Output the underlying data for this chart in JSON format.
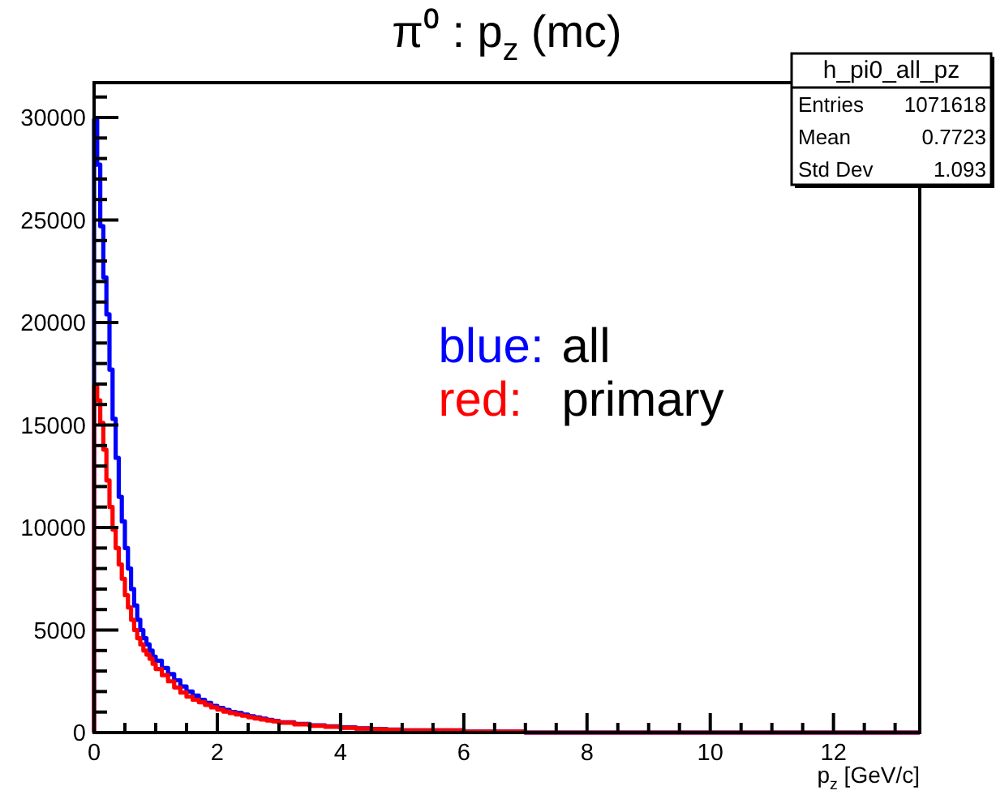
{
  "chart_data": {
    "type": "histogram",
    "title": "π⁰ : p$_{z}$ (mc)",
    "xlabel": "p$_{z}$ [GeV/c]",
    "bins": [
      0,
      0.05,
      0.1,
      0.15,
      0.2,
      0.25,
      0.3,
      0.35,
      0.4,
      0.45,
      0.5,
      0.55,
      0.6,
      0.65,
      0.7,
      0.75,
      0.8,
      0.85,
      0.9,
      0.95,
      1.0,
      1.1,
      1.2,
      1.3,
      1.4,
      1.5,
      1.6,
      1.7,
      1.8,
      1.9,
      2.0,
      2.1,
      2.2,
      2.3,
      2.4,
      2.5,
      2.6,
      2.7,
      2.8,
      2.9,
      3.0,
      3.25,
      3.5,
      3.75,
      4.0,
      4.25,
      4.5,
      4.75,
      5.0,
      6.0,
      7.0,
      8.0,
      10.0,
      13.4
    ],
    "series": [
      {
        "name": "blue: all",
        "color": "#0000ff",
        "values": [
          29900,
          27700,
          24700,
          22200,
          20400,
          17700,
          15300,
          13400,
          11500,
          10300,
          9000,
          8000,
          7000,
          6200,
          5500,
          5000,
          4600,
          4300,
          4000,
          3700,
          3500,
          3150,
          2850,
          2550,
          2250,
          2000,
          1800,
          1600,
          1450,
          1300,
          1200,
          1100,
          1000,
          950,
          880,
          800,
          740,
          680,
          620,
          570,
          500,
          420,
          350,
          300,
          250,
          200,
          170,
          140,
          100,
          50,
          0,
          0,
          0
        ]
      },
      {
        "name": "red: primary",
        "color": "#ff0000",
        "values": [
          16900,
          16200,
          15100,
          13800,
          12300,
          11000,
          9900,
          9000,
          8200,
          7500,
          6700,
          6100,
          5500,
          5000,
          4600,
          4300,
          4000,
          3800,
          3600,
          3350,
          3100,
          2800,
          2500,
          2200,
          1950,
          1750,
          1600,
          1480,
          1350,
          1230,
          1120,
          1020,
          950,
          880,
          820,
          750,
          690,
          640,
          590,
          550,
          480,
          400,
          330,
          280,
          230,
          190,
          160,
          130,
          100,
          50,
          0,
          0,
          0
        ]
      }
    ],
    "xlim": [
      0,
      13.4
    ],
    "ylim": [
      0,
      31700
    ],
    "xticks": [
      0,
      {
        "value": 0.5,
        "label": null
      },
      {
        "value": 1,
        "label": null
      },
      {
        "value": 1.5,
        "label": null
      },
      2,
      {
        "value": 2.5,
        "label": null
      },
      {
        "value": 3,
        "label": null
      },
      {
        "value": 3.5,
        "label": null
      },
      4,
      {
        "value": 4.5,
        "label": null
      },
      {
        "value": 5,
        "label": null
      },
      {
        "value": 5.5,
        "label": null
      },
      6,
      {
        "value": 6.5,
        "label": null
      },
      {
        "value": 7,
        "label": null
      },
      {
        "value": 7.5,
        "label": null
      },
      8,
      {
        "value": 8.5,
        "label": null
      },
      {
        "value": 9,
        "label": null
      },
      {
        "value": 9.5,
        "label": null
      },
      10,
      {
        "value": 10.5,
        "label": null
      },
      {
        "value": 11,
        "label": null
      },
      {
        "value": 11.5,
        "label": null
      },
      12,
      {
        "value": 12.5,
        "label": null
      },
      {
        "value": 13,
        "label": null
      }
    ],
    "yticks": [
      0,
      {
        "value": 1000,
        "label": null
      },
      {
        "value": 2000,
        "label": null
      },
      {
        "value": 3000,
        "label": null
      },
      {
        "value": 4000,
        "label": null
      },
      5000,
      {
        "value": 6000,
        "label": null
      },
      {
        "value": 7000,
        "label": null
      },
      {
        "value": 8000,
        "label": null
      },
      {
        "value": 9000,
        "label": null
      },
      10000,
      {
        "value": 11000,
        "label": null
      },
      {
        "value": 12000,
        "label": null
      },
      {
        "value": 13000,
        "label": null
      },
      {
        "value": 14000,
        "label": null
      },
      15000,
      {
        "value": 16000,
        "label": null
      },
      {
        "value": 17000,
        "label": null
      },
      {
        "value": 18000,
        "label": null
      },
      {
        "value": 19000,
        "label": null
      },
      20000,
      {
        "value": 21000,
        "label": null
      },
      {
        "value": 22000,
        "label": null
      },
      {
        "value": 23000,
        "label": null
      },
      {
        "value": 24000,
        "label": null
      },
      25000,
      {
        "value": 26000,
        "label": null
      },
      {
        "value": 27000,
        "label": null
      },
      {
        "value": 28000,
        "label": null
      },
      {
        "value": 29000,
        "label": null
      },
      30000,
      {
        "value": 31000,
        "label": null
      }
    ],
    "legend": "right",
    "annotations": [
      "h_pi0_all_pz",
      "Entries",
      "1071618",
      "Mean",
      "0.7723",
      "Std Dev",
      "1.093"
    ]
  }
}
